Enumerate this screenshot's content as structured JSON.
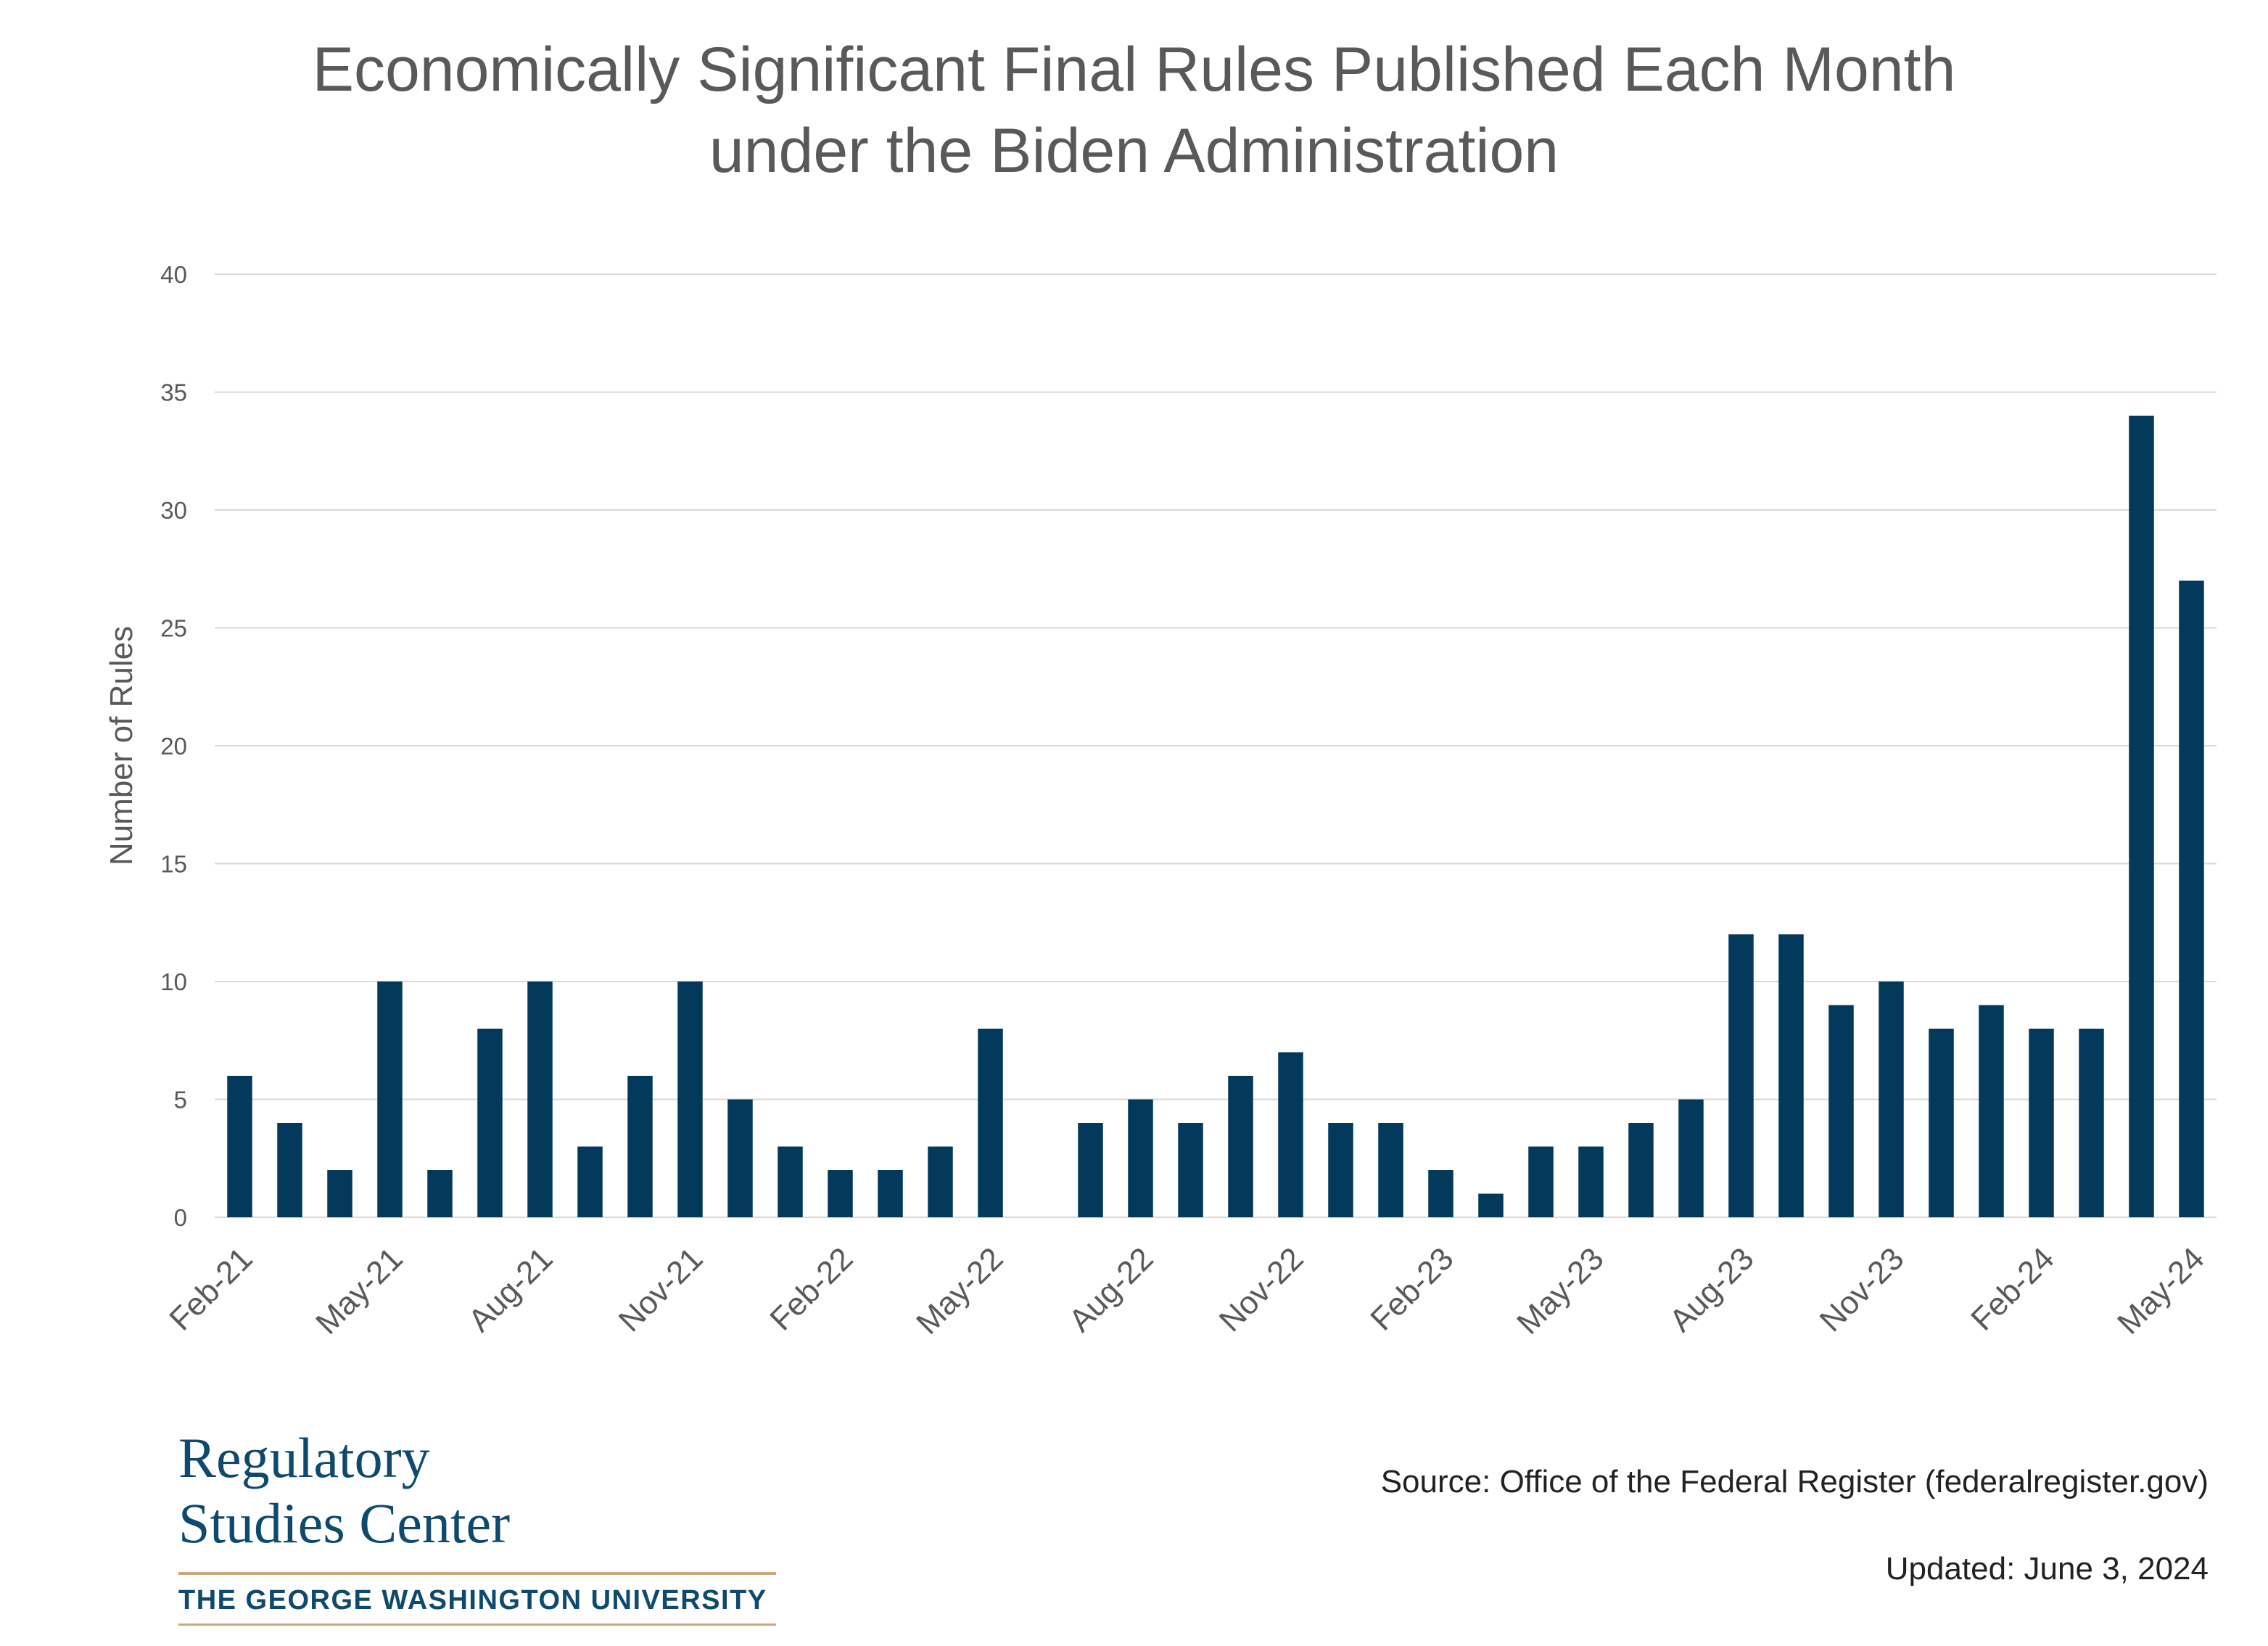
{
  "chart_data": {
    "type": "bar",
    "title_line1": "Economically Significant Final Rules Published Each Month",
    "title_line2": "under the Biden Administration",
    "ylabel": "Number of Rules",
    "xlabel": "",
    "ylim": [
      0,
      40
    ],
    "y_ticks": [
      "0",
      "5",
      "10",
      "15",
      "20",
      "25",
      "30",
      "35",
      "40"
    ],
    "grid": true,
    "legend": "none",
    "bar_color": "#033a5c",
    "categories": [
      "Feb-21",
      "Mar-21",
      "Apr-21",
      "May-21",
      "Jun-21",
      "Jul-21",
      "Aug-21",
      "Sep-21",
      "Oct-21",
      "Nov-21",
      "Dec-21",
      "Jan-22",
      "Feb-22",
      "Mar-22",
      "Apr-22",
      "May-22",
      "Jun-22",
      "Jul-22",
      "Aug-22",
      "Sep-22",
      "Oct-22",
      "Nov-22",
      "Dec-22",
      "Jan-23",
      "Feb-23",
      "Mar-23",
      "Apr-23",
      "May-23",
      "Jun-23",
      "Jul-23",
      "Aug-23",
      "Sep-23",
      "Oct-23",
      "Nov-23",
      "Dec-23",
      "Jan-24",
      "Feb-24",
      "Mar-24",
      "Apr-24",
      "May-24"
    ],
    "x_tick_labels": [
      "Feb-21",
      "May-21",
      "Aug-21",
      "Nov-21",
      "Feb-22",
      "May-22",
      "Aug-22",
      "Nov-22",
      "Feb-23",
      "May-23",
      "Aug-23",
      "Nov-23",
      "Feb-24",
      "May-24"
    ],
    "values": [
      6,
      4,
      2,
      10,
      2,
      8,
      10,
      3,
      6,
      10,
      5,
      3,
      2,
      2,
      3,
      8,
      0,
      4,
      5,
      4,
      6,
      7,
      4,
      4,
      2,
      1,
      3,
      3,
      4,
      5,
      12,
      12,
      9,
      10,
      8,
      9,
      8,
      8,
      34,
      27
    ]
  },
  "logo": {
    "line1": "Regulatory",
    "line2": "Studies Center",
    "university": "THE GEORGE WASHINGTON UNIVERSITY"
  },
  "source": "Source: Office of the Federal Register (federalregister.gov)",
  "updated": "Updated: June 3, 2024"
}
